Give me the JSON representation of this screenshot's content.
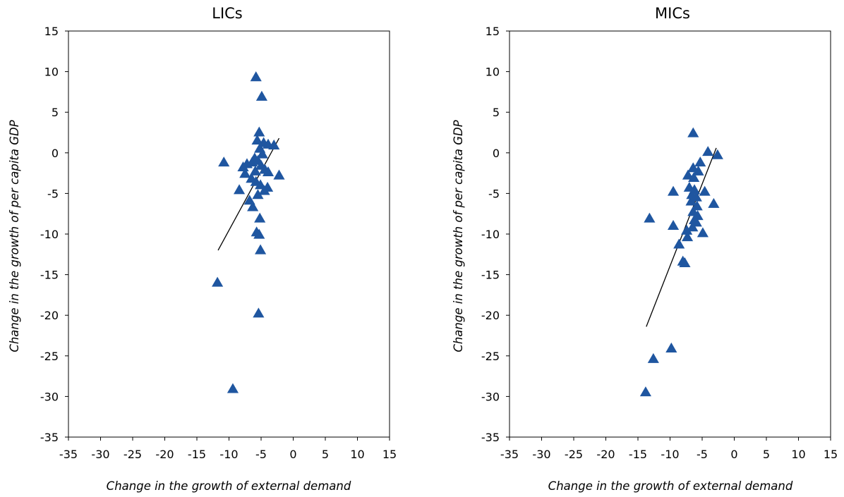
{
  "chart_data": [
    {
      "type": "scatter",
      "title": "LICs",
      "xlabel": "Change in the growth of external demand",
      "ylabel": "Change in the growth of per capita GDP",
      "xlim": [
        -35,
        15
      ],
      "ylim": [
        -35,
        15
      ],
      "xticks": [
        "-35",
        "-30",
        "-25",
        "-20",
        "-15",
        "-10",
        "-5",
        "0",
        "5",
        "10",
        "15"
      ],
      "yticks": [
        "15",
        "10",
        "5",
        "0",
        "-5",
        "-10",
        "-15",
        "-20",
        "-25",
        "-30",
        "-35"
      ],
      "marker": "triangle",
      "marker_color": "#1f56a0",
      "points": [
        {
          "x": -5.8,
          "y": 9.3
        },
        {
          "x": -4.9,
          "y": 6.9
        },
        {
          "x": -5.3,
          "y": 2.5
        },
        {
          "x": -5.6,
          "y": 1.5
        },
        {
          "x": -4.6,
          "y": 1.2
        },
        {
          "x": -3.9,
          "y": 1.0
        },
        {
          "x": -3.0,
          "y": 0.9
        },
        {
          "x": -5.2,
          "y": 0.5
        },
        {
          "x": -4.8,
          "y": -0.2
        },
        {
          "x": -6.0,
          "y": -0.7
        },
        {
          "x": -5.5,
          "y": -1.0
        },
        {
          "x": -6.4,
          "y": -1.2
        },
        {
          "x": -10.8,
          "y": -1.2
        },
        {
          "x": -7.2,
          "y": -1.4
        },
        {
          "x": -5.0,
          "y": -1.6
        },
        {
          "x": -7.8,
          "y": -1.8
        },
        {
          "x": -4.4,
          "y": -2.1
        },
        {
          "x": -5.9,
          "y": -2.3
        },
        {
          "x": -3.9,
          "y": -2.4
        },
        {
          "x": -2.2,
          "y": -2.8
        },
        {
          "x": -7.5,
          "y": -2.6
        },
        {
          "x": -6.5,
          "y": -3.2
        },
        {
          "x": -5.8,
          "y": -3.6
        },
        {
          "x": -5.1,
          "y": -4.0
        },
        {
          "x": -4.0,
          "y": -4.3
        },
        {
          "x": -8.4,
          "y": -4.6
        },
        {
          "x": -4.5,
          "y": -4.7
        },
        {
          "x": -5.5,
          "y": -5.2
        },
        {
          "x": -6.8,
          "y": -5.9
        },
        {
          "x": -6.3,
          "y": -6.7
        },
        {
          "x": -5.2,
          "y": -8.1
        },
        {
          "x": -5.7,
          "y": -9.8
        },
        {
          "x": -5.3,
          "y": -10.1
        },
        {
          "x": -5.1,
          "y": -12.0
        },
        {
          "x": -11.8,
          "y": -16.0
        },
        {
          "x": -5.4,
          "y": -19.8
        },
        {
          "x": -9.4,
          "y": -29.1
        }
      ],
      "trendline": {
        "x": [
          -11.7,
          -2.2
        ],
        "y": [
          -12.0,
          1.8
        ]
      }
    },
    {
      "type": "scatter",
      "title": "MICs",
      "xlabel": "Change in the growth of external demand",
      "ylabel": "Change in the growth of per capita GDP",
      "xlim": [
        -35,
        15
      ],
      "ylim": [
        -35,
        15
      ],
      "xticks": [
        "-35",
        "-30",
        "-25",
        "-20",
        "-15",
        "-10",
        "-5",
        "0",
        "5",
        "10",
        "15"
      ],
      "yticks": [
        "15",
        "10",
        "5",
        "0",
        "-5",
        "-10",
        "-15",
        "-20",
        "-25",
        "-30",
        "-35"
      ],
      "marker": "triangle",
      "marker_color": "#1f56a0",
      "points": [
        {
          "x": -6.4,
          "y": 2.4
        },
        {
          "x": -4.1,
          "y": 0.1
        },
        {
          "x": -2.6,
          "y": -0.3
        },
        {
          "x": -5.3,
          "y": -1.2
        },
        {
          "x": -6.4,
          "y": -1.9
        },
        {
          "x": -5.6,
          "y": -2.3
        },
        {
          "x": -7.2,
          "y": -2.8
        },
        {
          "x": -6.3,
          "y": -3.1
        },
        {
          "x": -7.0,
          "y": -4.3
        },
        {
          "x": -6.2,
          "y": -4.6
        },
        {
          "x": -4.6,
          "y": -4.8
        },
        {
          "x": -9.5,
          "y": -4.8
        },
        {
          "x": -6.6,
          "y": -5.2
        },
        {
          "x": -5.9,
          "y": -5.5
        },
        {
          "x": -6.7,
          "y": -6.0
        },
        {
          "x": -3.2,
          "y": -6.3
        },
        {
          "x": -5.8,
          "y": -6.6
        },
        {
          "x": -6.4,
          "y": -7.3
        },
        {
          "x": -5.7,
          "y": -7.8
        },
        {
          "x": -13.2,
          "y": -8.1
        },
        {
          "x": -6.2,
          "y": -8.3
        },
        {
          "x": -5.9,
          "y": -8.6
        },
        {
          "x": -9.5,
          "y": -9.0
        },
        {
          "x": -6.5,
          "y": -9.2
        },
        {
          "x": -7.4,
          "y": -9.6
        },
        {
          "x": -4.9,
          "y": -9.9
        },
        {
          "x": -7.3,
          "y": -10.4
        },
        {
          "x": -8.6,
          "y": -11.3
        },
        {
          "x": -8.0,
          "y": -13.4
        },
        {
          "x": -7.7,
          "y": -13.6
        },
        {
          "x": -9.8,
          "y": -24.1
        },
        {
          "x": -12.6,
          "y": -25.4
        },
        {
          "x": -13.8,
          "y": -29.5
        }
      ],
      "trendline": {
        "x": [
          -13.7,
          -2.8
        ],
        "y": [
          -21.4,
          0.6
        ]
      }
    }
  ]
}
